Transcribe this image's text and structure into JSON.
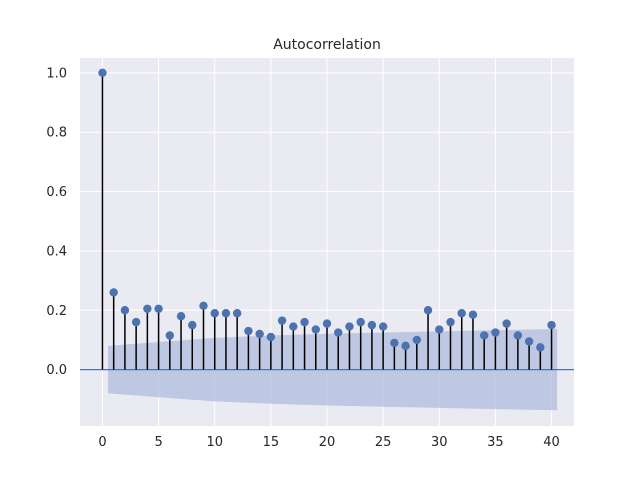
{
  "chart_data": {
    "type": "stem",
    "title": "Autocorrelation",
    "xlabel": "",
    "ylabel": "",
    "xlim": [
      -2,
      42
    ],
    "ylim": [
      -0.19,
      1.05
    ],
    "xticks": [
      0,
      5,
      10,
      15,
      20,
      25,
      30,
      35,
      40
    ],
    "yticks": [
      0.0,
      0.2,
      0.4,
      0.6,
      0.8,
      1.0
    ],
    "grid": true,
    "colors": {
      "background": "#eaeaf2",
      "grid": "#ffffff",
      "marker": "#4c72b0",
      "stem": "#000000",
      "zero_line": "#4c72b0",
      "confidence_band": "#b0bcdc"
    },
    "lags": [
      0,
      1,
      2,
      3,
      4,
      5,
      6,
      7,
      8,
      9,
      10,
      11,
      12,
      13,
      14,
      15,
      16,
      17,
      18,
      19,
      20,
      21,
      22,
      23,
      24,
      25,
      26,
      27,
      28,
      29,
      30,
      31,
      32,
      33,
      34,
      35,
      36,
      37,
      38,
      39,
      40
    ],
    "acf": [
      1.0,
      0.26,
      0.2,
      0.16,
      0.205,
      0.205,
      0.115,
      0.18,
      0.15,
      0.215,
      0.19,
      0.19,
      0.19,
      0.13,
      0.12,
      0.11,
      0.165,
      0.145,
      0.16,
      0.135,
      0.155,
      0.125,
      0.145,
      0.16,
      0.15,
      0.145,
      0.09,
      0.08,
      0.1,
      0.2,
      0.135,
      0.16,
      0.19,
      0.185,
      0.115,
      0.125,
      0.155,
      0.115,
      0.095,
      0.075,
      0.15
    ],
    "confidence_band": {
      "lags": [
        0.5,
        5,
        10,
        15,
        20,
        25,
        30,
        35,
        40.5
      ],
      "upper": [
        0.08,
        0.093,
        0.107,
        0.115,
        0.121,
        0.125,
        0.129,
        0.133,
        0.137
      ],
      "lower": [
        -0.08,
        -0.093,
        -0.107,
        -0.115,
        -0.121,
        -0.125,
        -0.129,
        -0.133,
        -0.137
      ]
    }
  }
}
